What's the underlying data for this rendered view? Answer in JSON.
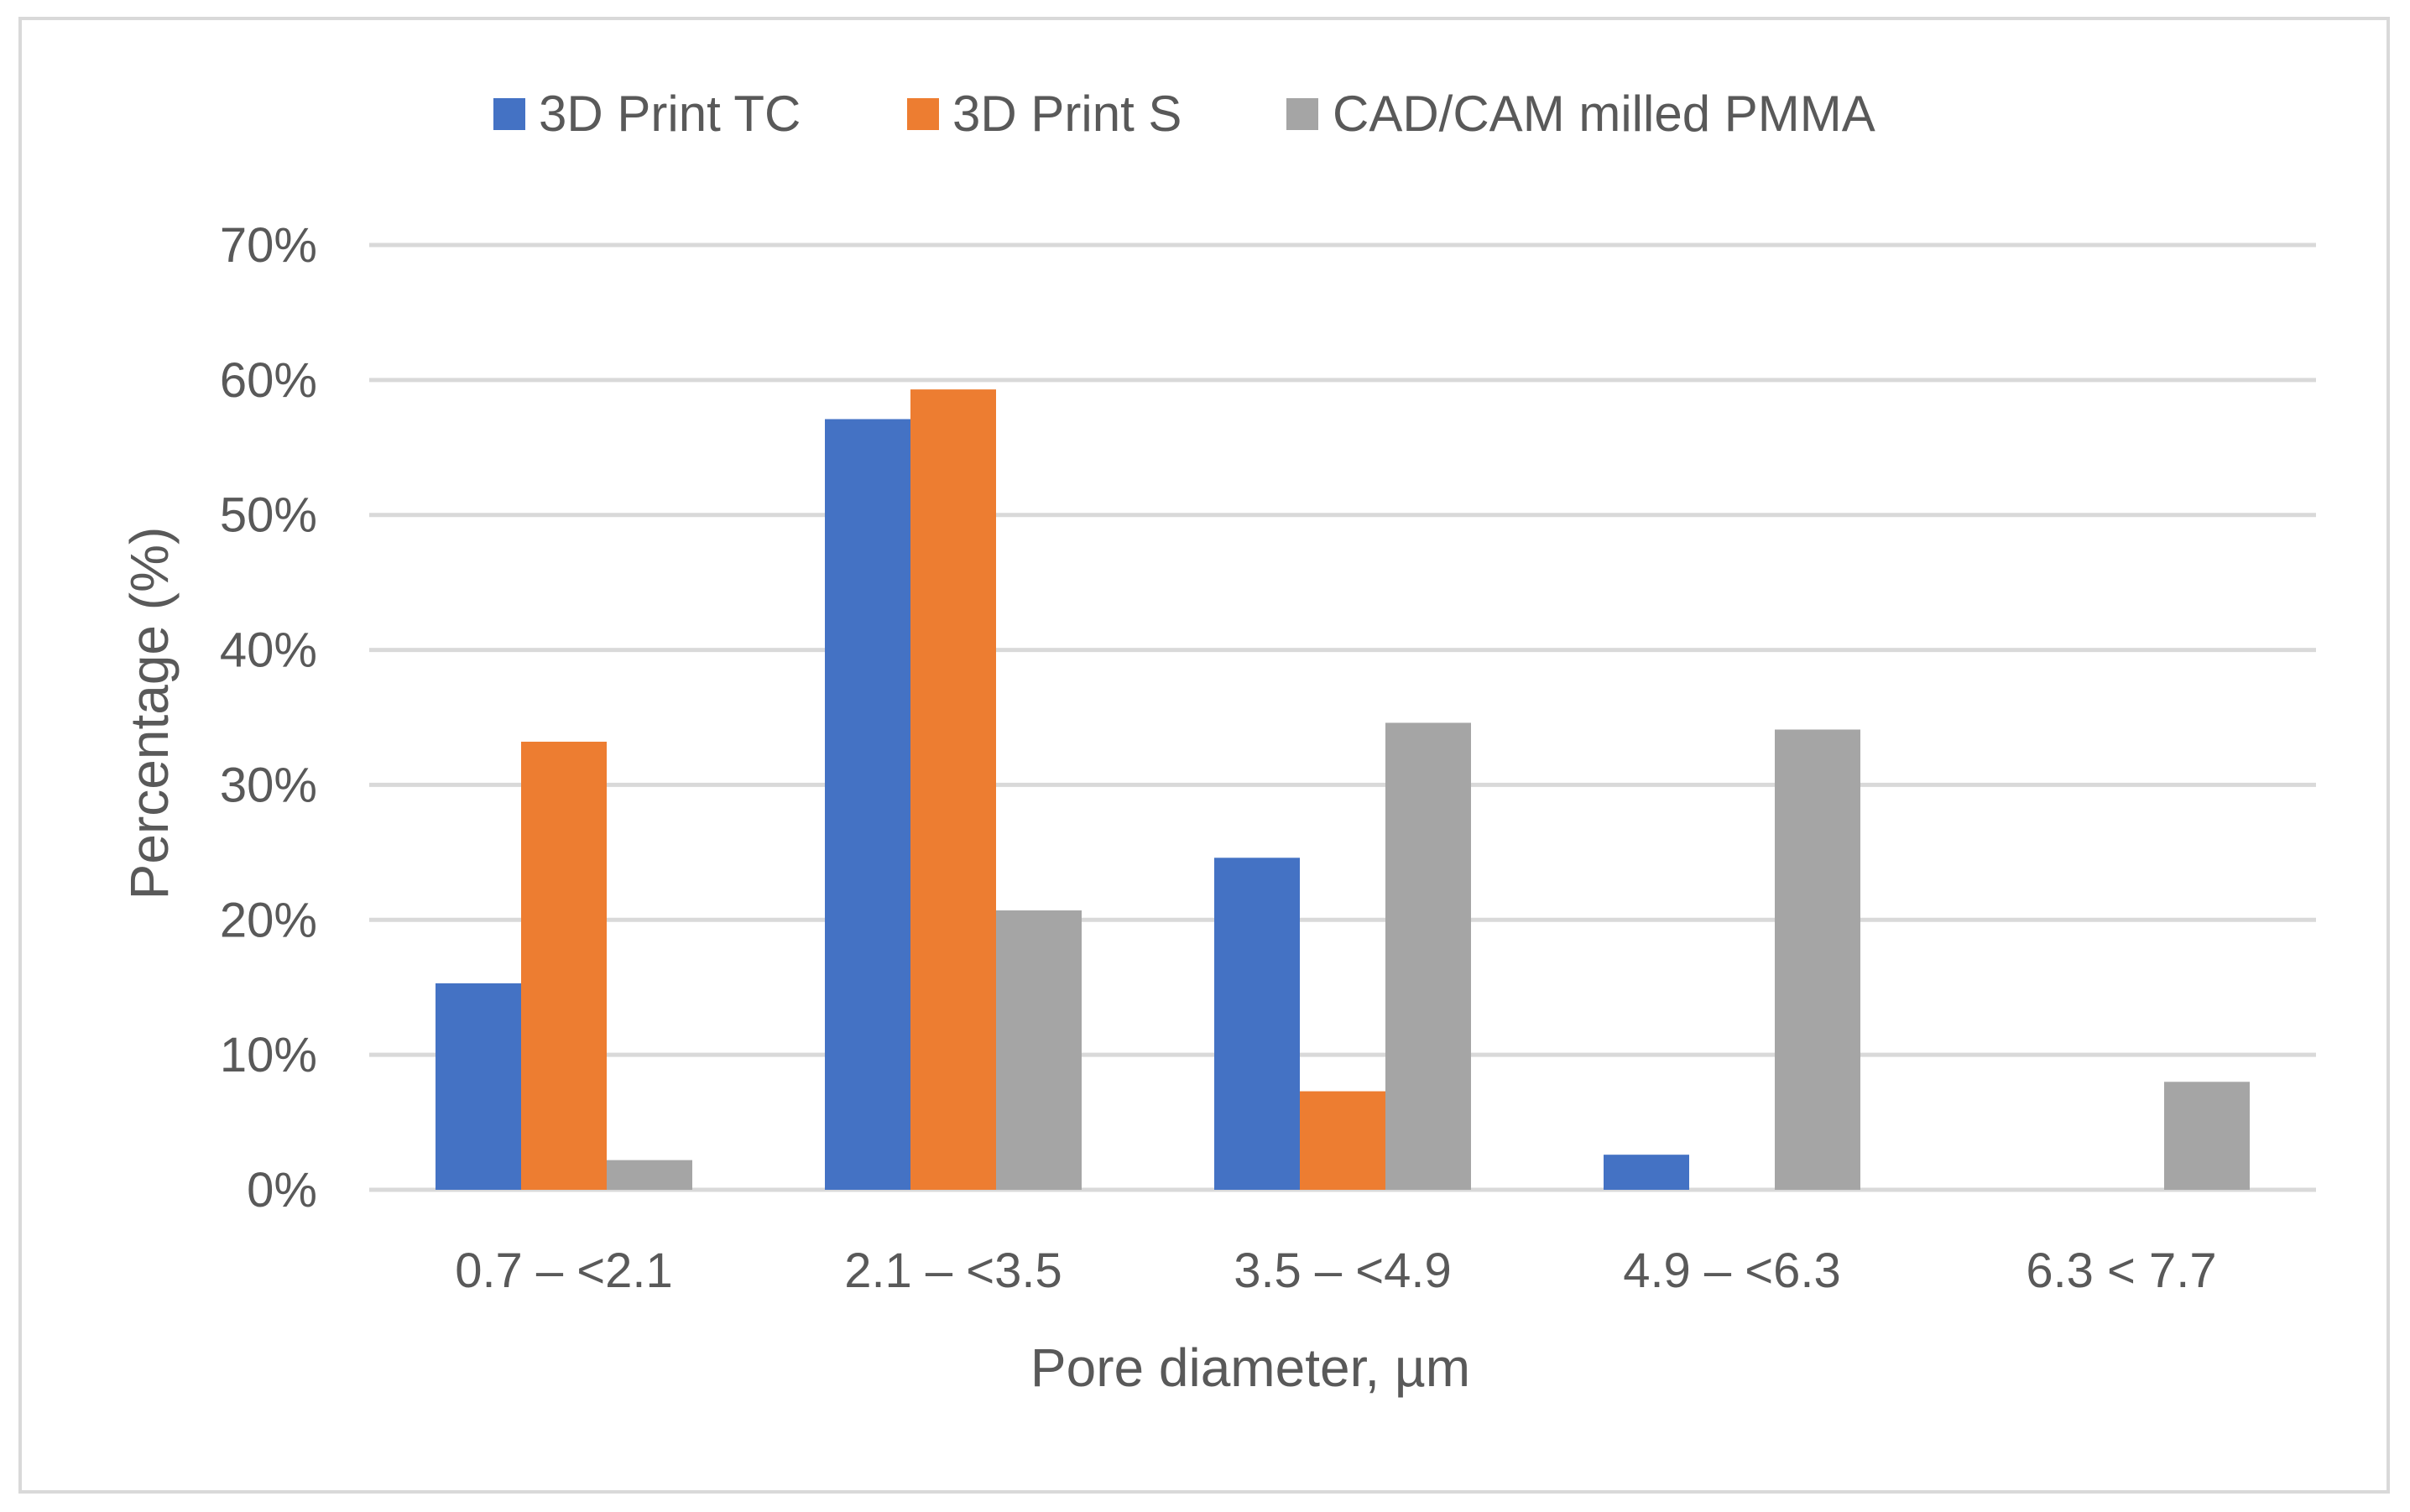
{
  "chart_data": {
    "type": "bar",
    "title": "",
    "xlabel": "Pore diameter, µm",
    "ylabel": "Percentage (%)",
    "categories": [
      "0.7 – <2.1",
      "2.1 – <3.5",
      "3.5 – <4.9",
      "4.9 – <6.3",
      "6.3 < 7.7"
    ],
    "ylim": [
      0,
      70
    ],
    "yticks": [
      0,
      10,
      20,
      30,
      40,
      50,
      60,
      70
    ],
    "ytick_labels": [
      "0%",
      "10%",
      "20%",
      "30%",
      "40%",
      "50%",
      "60%",
      "70%"
    ],
    "grid": true,
    "legend_position": "top",
    "series": [
      {
        "name": "3D Print TC",
        "color": "#4472c4",
        "values": [
          15.3,
          57.1,
          24.6,
          2.6,
          0
        ]
      },
      {
        "name": "3D Print S",
        "color": "#ed7d31",
        "values": [
          33.2,
          59.3,
          7.3,
          0,
          0
        ]
      },
      {
        "name": "CAD/CAM milled PMMA",
        "color": "#a5a5a5",
        "values": [
          2.2,
          20.7,
          34.6,
          34.1,
          8.0
        ]
      }
    ]
  }
}
